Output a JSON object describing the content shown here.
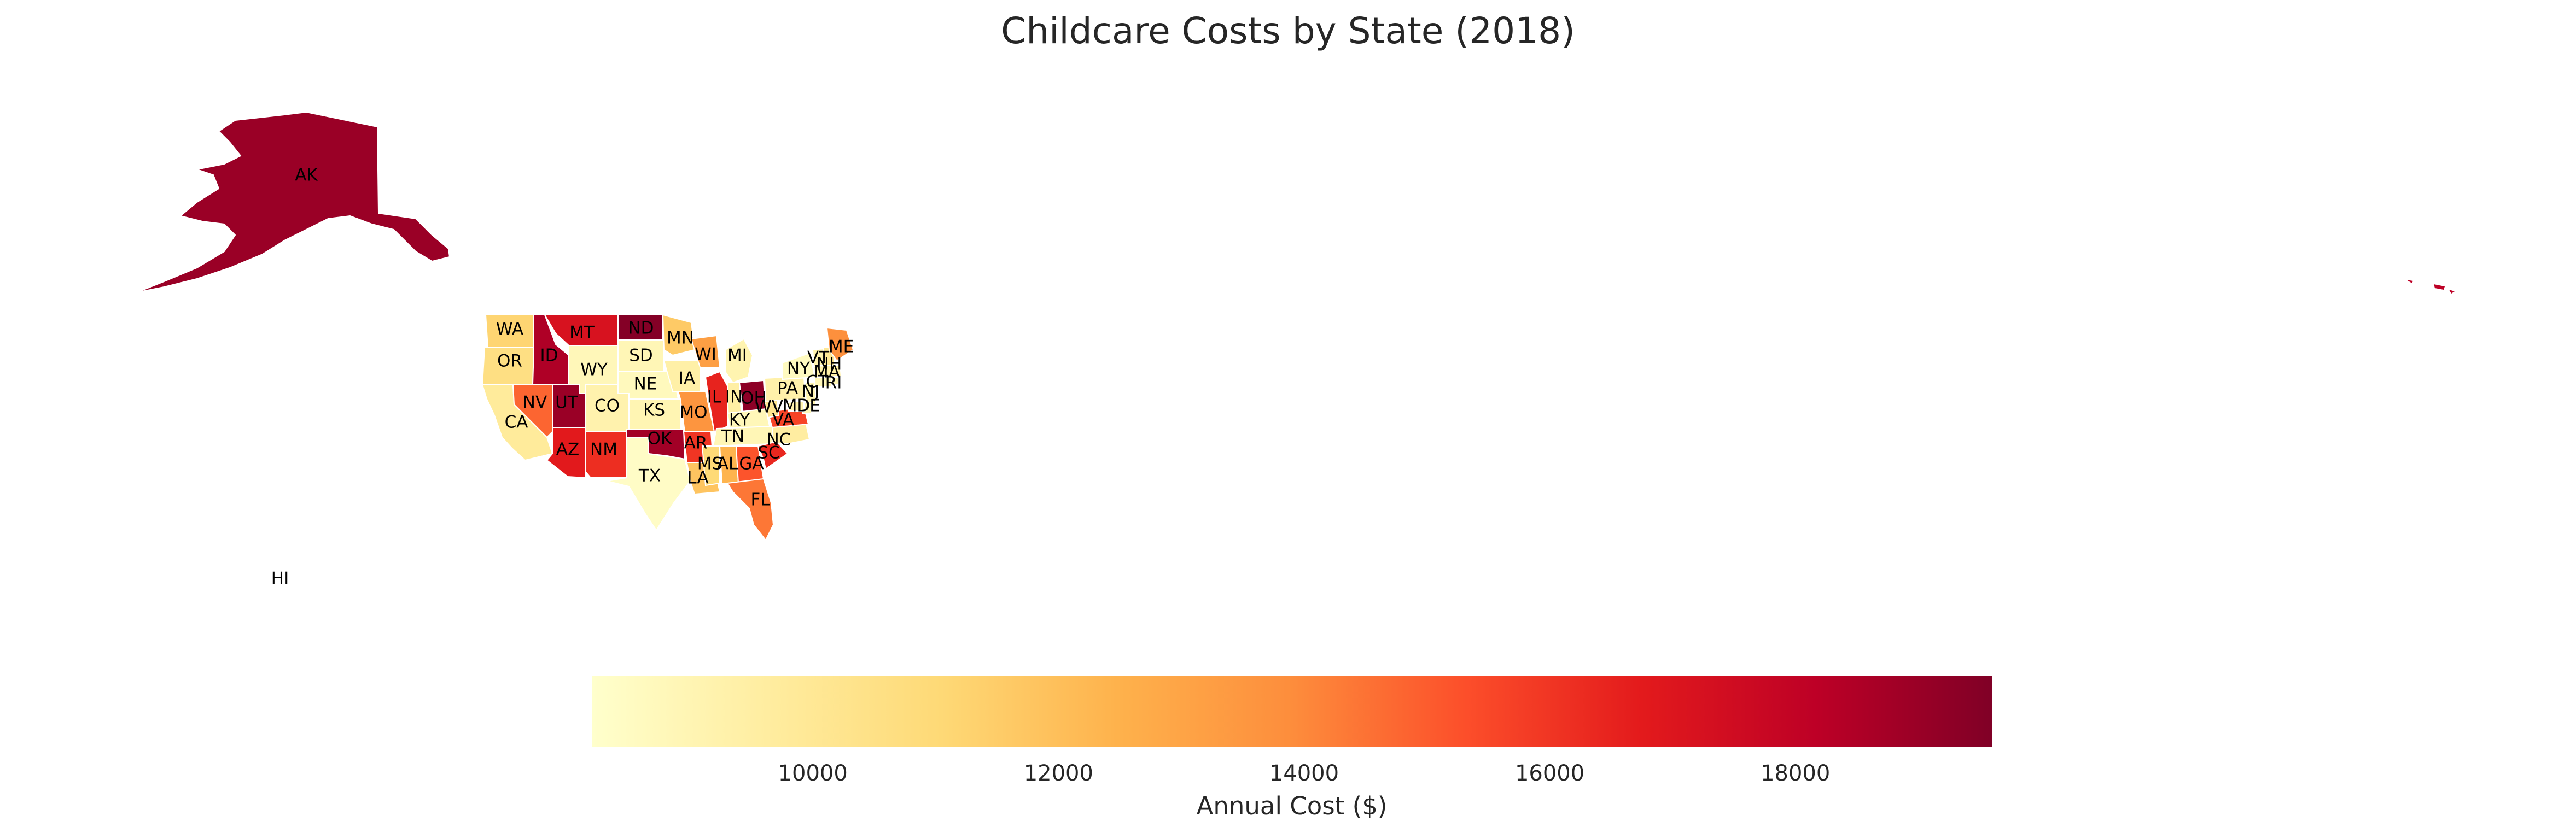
{
  "title": "Childcare Costs by State (2018)",
  "colorbar": {
    "label": "Annual Cost ($)",
    "colormap": "YlOrRd",
    "min": 8200,
    "max": 19600,
    "ticks": [
      10000,
      12000,
      14000,
      16000,
      18000
    ],
    "colors": [
      "#ffffcc",
      "#ffeda0",
      "#fed976",
      "#feb24c",
      "#fd8d3c",
      "#fc4e2a",
      "#e31a1c",
      "#bd0026",
      "#800026"
    ]
  },
  "chart_data": {
    "type": "choropleth",
    "title": "Childcare Costs by State (2018)",
    "value_label": "Annual Cost ($)",
    "range": [
      8200,
      19600
    ],
    "states": [
      {
        "code": "AK",
        "value": 19000
      },
      {
        "code": "WA",
        "value": 11200
      },
      {
        "code": "OR",
        "value": 10600
      },
      {
        "code": "CA",
        "value": 9800
      },
      {
        "code": "NV",
        "value": 14800
      },
      {
        "code": "ID",
        "value": 18500
      },
      {
        "code": "MT",
        "value": 17200
      },
      {
        "code": "WY",
        "value": 8800
      },
      {
        "code": "UT",
        "value": 19000
      },
      {
        "code": "AZ",
        "value": 16800
      },
      {
        "code": "CO",
        "value": 9200
      },
      {
        "code": "NM",
        "value": 16200
      },
      {
        "code": "ND",
        "value": 19500
      },
      {
        "code": "SD",
        "value": 8900
      },
      {
        "code": "NE",
        "value": 8700
      },
      {
        "code": "KS",
        "value": 9000
      },
      {
        "code": "OK",
        "value": 18800
      },
      {
        "code": "TX",
        "value": 8400
      },
      {
        "code": "MN",
        "value": 11600
      },
      {
        "code": "IA",
        "value": 9400
      },
      {
        "code": "MO",
        "value": 13600
      },
      {
        "code": "AR",
        "value": 16000
      },
      {
        "code": "LA",
        "value": 11800
      },
      {
        "code": "WI",
        "value": 13200
      },
      {
        "code": "IL",
        "value": 16500
      },
      {
        "code": "MI",
        "value": 9100
      },
      {
        "code": "IN",
        "value": 9500
      },
      {
        "code": "OH",
        "value": 19300
      },
      {
        "code": "KY",
        "value": 8800
      },
      {
        "code": "TN",
        "value": 8900
      },
      {
        "code": "MS",
        "value": 11000
      },
      {
        "code": "AL",
        "value": 12400
      },
      {
        "code": "GA",
        "value": 15200
      },
      {
        "code": "FL",
        "value": 14400
      },
      {
        "code": "SC",
        "value": 16400
      },
      {
        "code": "NC",
        "value": 9600
      },
      {
        "code": "VA",
        "value": 15600
      },
      {
        "code": "WV",
        "value": 10200
      },
      {
        "code": "PA",
        "value": 9300
      },
      {
        "code": "NY",
        "value": 8600
      },
      {
        "code": "VT",
        "value": 9200
      },
      {
        "code": "NH",
        "value": 10000
      },
      {
        "code": "ME",
        "value": 13800
      },
      {
        "code": "MA",
        "value": 9400
      },
      {
        "code": "RI",
        "value": 9000
      },
      {
        "code": "CT",
        "value": 8800
      },
      {
        "code": "NJ",
        "value": 9000
      },
      {
        "code": "DE",
        "value": 8800
      },
      {
        "code": "MD",
        "value": 9200
      },
      {
        "code": "HI",
        "value": null
      }
    ]
  }
}
